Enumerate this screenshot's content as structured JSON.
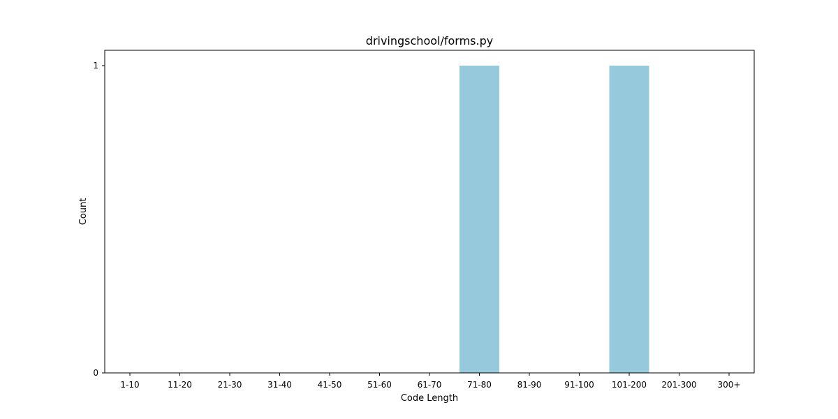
{
  "chart_data": {
    "type": "bar",
    "title": "drivingschool/forms.py",
    "xlabel": "Code Length",
    "ylabel": "Count",
    "categories": [
      "1-10",
      "11-20",
      "21-30",
      "31-40",
      "41-50",
      "51-60",
      "61-70",
      "71-80",
      "81-90",
      "91-100",
      "101-200",
      "201-300",
      "300+"
    ],
    "values": [
      0,
      0,
      0,
      0,
      0,
      0,
      0,
      1,
      0,
      0,
      1,
      0,
      0
    ],
    "ylim": [
      0,
      1
    ],
    "yticks": [
      0,
      1
    ],
    "bar_color": "#96c9dc",
    "grid": false,
    "legend": "none"
  }
}
